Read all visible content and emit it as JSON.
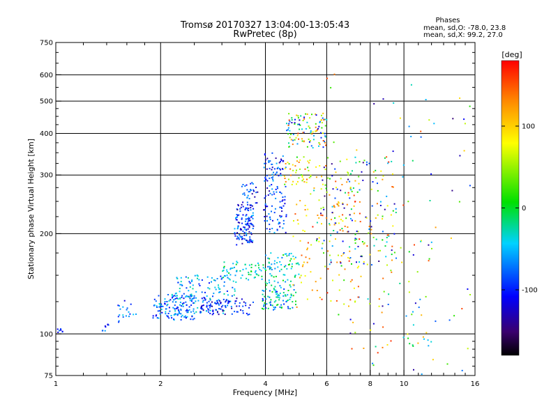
{
  "chart_data": {
    "type": "scatter",
    "title": "Tromsø 20170327 13:04:00-13:05:43",
    "subtitle": "RwPretec (8p)",
    "stats": {
      "heading": "Phases",
      "line_o": "mean, sd,O: -78.0, 23.8",
      "line_x": "mean, sd,X:  99.2, 27.0"
    },
    "xlabel": "Frequency [MHz]",
    "ylabel": "Stationary phase Virtual Height [km]",
    "x_scale": "log",
    "y_scale": "log",
    "xlim": [
      1,
      16
    ],
    "ylim": [
      75,
      750
    ],
    "x_ticks": [
      {
        "value": 1,
        "label": "1"
      },
      {
        "value": 2,
        "label": "2"
      },
      {
        "value": 4,
        "label": "4"
      },
      {
        "value": 6,
        "label": "6"
      },
      {
        "value": 8,
        "label": "8"
      },
      {
        "value": 10,
        "label": "10"
      },
      {
        "value": 16,
        "label": "16"
      }
    ],
    "y_ticks": [
      {
        "value": 75,
        "label": "75"
      },
      {
        "value": 100,
        "label": "100"
      },
      {
        "value": 200,
        "label": "200"
      },
      {
        "value": 300,
        "label": "300"
      },
      {
        "value": 400,
        "label": "400"
      },
      {
        "value": 500,
        "label": "500"
      },
      {
        "value": 600,
        "label": "600"
      },
      {
        "value": 750,
        "label": "750"
      }
    ],
    "grid_x": [
      2,
      4,
      6,
      8,
      10
    ],
    "grid_y": [
      100,
      200,
      300,
      400,
      500,
      600
    ],
    "colorbar": {
      "label": "[deg]",
      "range": [
        -180,
        180
      ],
      "ticks": [
        {
          "value": 100,
          "label": "100"
        },
        {
          "value": 0,
          "label": "0"
        },
        {
          "value": -100,
          "label": "-100"
        }
      ]
    },
    "clusters": [
      {
        "f": [
          1.0,
          1.06
        ],
        "h": [
          100,
          104
        ],
        "phase": [
          -120,
          -60
        ],
        "n": 8
      },
      {
        "f": [
          1.35,
          1.42
        ],
        "h": [
          101,
          107
        ],
        "phase": [
          -120,
          -60
        ],
        "n": 8
      },
      {
        "f": [
          1.5,
          1.72
        ],
        "h": [
          106,
          126
        ],
        "phase": [
          -120,
          -40
        ],
        "n": 20
      },
      {
        "f": [
          1.9,
          2.5
        ],
        "h": [
          110,
          132
        ],
        "phase": [
          -120,
          -30
        ],
        "n": 120
      },
      {
        "f": [
          2.2,
          3.3
        ],
        "h": [
          115,
          150
        ],
        "phase": [
          -110,
          -20
        ],
        "n": 150
      },
      {
        "f": [
          2.6,
          3.7
        ],
        "h": [
          114,
          128
        ],
        "phase": [
          -140,
          -80
        ],
        "n": 80
      },
      {
        "f": [
          3.0,
          4.0
        ],
        "h": [
          145,
          165
        ],
        "phase": [
          -60,
          10
        ],
        "n": 60
      },
      {
        "f": [
          3.25,
          3.7
        ],
        "h": [
          185,
          245
        ],
        "phase": [
          -140,
          -50
        ],
        "n": 130
      },
      {
        "f": [
          3.4,
          3.8
        ],
        "h": [
          245,
          285
        ],
        "phase": [
          -140,
          -60
        ],
        "n": 30
      },
      {
        "f": [
          3.9,
          4.9
        ],
        "h": [
          118,
          140
        ],
        "phase": [
          -110,
          20
        ],
        "n": 90
      },
      {
        "f": [
          4.0,
          5.0
        ],
        "h": [
          140,
          175
        ],
        "phase": [
          -80,
          10
        ],
        "n": 70
      },
      {
        "f": [
          3.95,
          4.6
        ],
        "h": [
          200,
          350
        ],
        "phase": [
          -140,
          -50
        ],
        "n": 130
      },
      {
        "f": [
          4.5,
          5.4
        ],
        "h": [
          280,
          340
        ],
        "phase": [
          0,
          150
        ],
        "n": 40
      },
      {
        "f": [
          4.6,
          6.0
        ],
        "h": [
          360,
          460
        ],
        "phase": [
          -130,
          160
        ],
        "n": 110
      },
      {
        "f": [
          4.8,
          7.5
        ],
        "h": [
          120,
          300
        ],
        "phase": [
          60,
          170
        ],
        "n": 110
      },
      {
        "f": [
          5.5,
          9.5
        ],
        "h": [
          160,
          340
        ],
        "phase": [
          -150,
          170
        ],
        "n": 190
      },
      {
        "f": [
          7.0,
          12.0
        ],
        "h": [
          90,
          200
        ],
        "phase": [
          -150,
          170
        ],
        "n": 50
      },
      {
        "f": [
          6.0,
          15.5
        ],
        "h": [
          75,
          620
        ],
        "phase": [
          -150,
          170
        ],
        "n": 90
      }
    ]
  }
}
